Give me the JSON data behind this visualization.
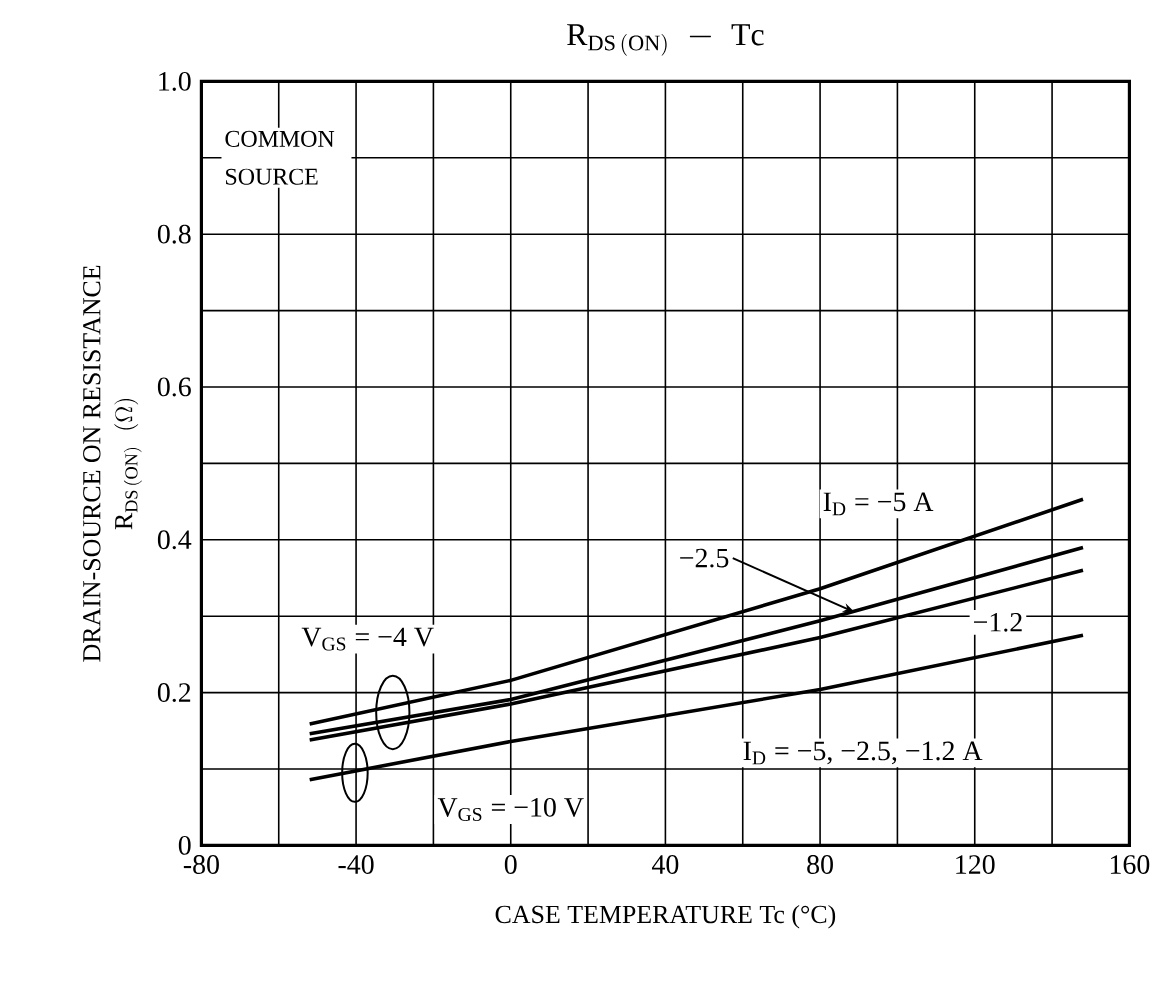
{
  "chart_data": {
    "type": "line",
    "title": "\\mathrm{R_{DS\\,(ON)}\\;-\\;Tc}",
    "xlabel": "CASE TEMPERATURE   Tc   (°C)",
    "ylabel": "\\begin{array}{c}\\mbox{DRAIN-SOURCE ON RESISTANCE}\\\\ \\mathrm{R_{DS\\,(ON)}}\\;\\;(\\Omega)\\end{array}",
    "xlim": [
      -80,
      160
    ],
    "xticks": [
      -80,
      -40,
      0,
      40,
      80,
      120,
      160
    ],
    "ylim": [
      0,
      1.0
    ],
    "yticks": [
      0,
      0.2,
      0.4,
      0.6,
      0.8,
      {
        "value": 1,
        "label": "1.0"
      }
    ],
    "grid": true,
    "marker": "none",
    "line_style": "solid",
    "series": [
      {
        "color": "#000000",
        "x": [
          -52,
          0,
          80,
          148
        ],
        "values": [
          0.159,
          0.216,
          0.336,
          0.453
        ]
      },
      {
        "color": "#000000",
        "x": [
          -52,
          0,
          80,
          148
        ],
        "values": [
          0.146,
          0.191,
          0.294,
          0.39
        ]
      },
      {
        "color": "#000000",
        "x": [
          -52,
          0,
          80,
          148
        ],
        "values": [
          0.138,
          0.185,
          0.272,
          0.36
        ]
      },
      {
        "color": "#000000",
        "x": [
          -52,
          0,
          80,
          148
        ],
        "values": [
          0.086,
          0.136,
          0.204,
          0.275
        ]
      }
    ],
    "annotations": [
      "COMMON SOURCE",
      "V$_{GS}$ = −4 V",
      "V$_{GS}$ = −10 V",
      "I$_{D}$ = −5 A",
      {
        "text": "−2.5",
        "x": 89,
        "y": 0.305
      },
      "−1.2",
      "I$_{D}$ = −5,  −2.5,  −1.2 A"
    ]
  }
}
